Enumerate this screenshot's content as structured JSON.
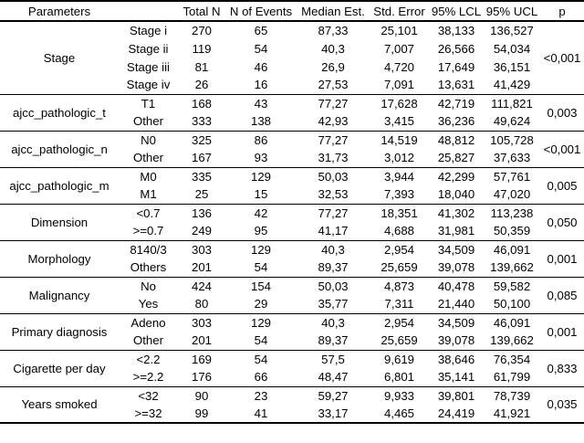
{
  "chart_data": {
    "type": "table",
    "columns": [
      "Parameters",
      "",
      "Total N",
      "N of Events",
      "Median Est.",
      "Std. Error",
      "95% LCL",
      "95% UCL",
      "p"
    ],
    "groups": [
      {
        "parameter": "Stage",
        "p": "<0,001",
        "rows": [
          {
            "level": "Stage i",
            "total_n": "270",
            "n_of_events": "65",
            "median_est": "87,33",
            "std_error": "25,101",
            "lcl_95": "38,133",
            "ucl_95": "136,527"
          },
          {
            "level": "Stage ii",
            "total_n": "119",
            "n_of_events": "54",
            "median_est": "40,3",
            "std_error": "7,007",
            "lcl_95": "26,566",
            "ucl_95": "54,034"
          },
          {
            "level": "Stage iii",
            "total_n": "81",
            "n_of_events": "46",
            "median_est": "26,9",
            "std_error": "4,720",
            "lcl_95": "17,649",
            "ucl_95": "36,151"
          },
          {
            "level": "Stage iv",
            "total_n": "26",
            "n_of_events": "16",
            "median_est": "27,53",
            "std_error": "7,091",
            "lcl_95": "13,631",
            "ucl_95": "41,429"
          }
        ]
      },
      {
        "parameter": "ajcc_pathologic_t",
        "p": "0,003",
        "rows": [
          {
            "level": "T1",
            "total_n": "168",
            "n_of_events": "43",
            "median_est": "77,27",
            "std_error": "17,628",
            "lcl_95": "42,719",
            "ucl_95": "111,821"
          },
          {
            "level": "Other",
            "total_n": "333",
            "n_of_events": "138",
            "median_est": "42,93",
            "std_error": "3,415",
            "lcl_95": "36,236",
            "ucl_95": "49,624"
          }
        ]
      },
      {
        "parameter": "ajcc_pathologic_n",
        "p": "<0,001",
        "rows": [
          {
            "level": "N0",
            "total_n": "325",
            "n_of_events": "86",
            "median_est": "77,27",
            "std_error": "14,519",
            "lcl_95": "48,812",
            "ucl_95": "105,728"
          },
          {
            "level": "Other",
            "total_n": "167",
            "n_of_events": "93",
            "median_est": "31,73",
            "std_error": "3,012",
            "lcl_95": "25,827",
            "ucl_95": "37,633"
          }
        ]
      },
      {
        "parameter": "ajcc_pathologic_m",
        "p": "0,005",
        "rows": [
          {
            "level": "M0",
            "total_n": "335",
            "n_of_events": "129",
            "median_est": "50,03",
            "std_error": "3,944",
            "lcl_95": "42,299",
            "ucl_95": "57,761"
          },
          {
            "level": "M1",
            "total_n": "25",
            "n_of_events": "15",
            "median_est": "32,53",
            "std_error": "7,393",
            "lcl_95": "18,040",
            "ucl_95": "47,020"
          }
        ]
      },
      {
        "parameter": "Dimension",
        "p": "0,050",
        "rows": [
          {
            "level": "<0.7",
            "total_n": "136",
            "n_of_events": "42",
            "median_est": "77,27",
            "std_error": "18,351",
            "lcl_95": "41,302",
            "ucl_95": "113,238"
          },
          {
            "level": ">=0.7",
            "total_n": "249",
            "n_of_events": "95",
            "median_est": "41,17",
            "std_error": "4,688",
            "lcl_95": "31,981",
            "ucl_95": "50,359"
          }
        ]
      },
      {
        "parameter": "Morphology",
        "p": "0,001",
        "rows": [
          {
            "level": "8140/3",
            "total_n": "303",
            "n_of_events": "129",
            "median_est": "40,3",
            "std_error": "2,954",
            "lcl_95": "34,509",
            "ucl_95": "46,091"
          },
          {
            "level": "Others",
            "total_n": "201",
            "n_of_events": "54",
            "median_est": "89,37",
            "std_error": "25,659",
            "lcl_95": "39,078",
            "ucl_95": "139,662"
          }
        ]
      },
      {
        "parameter": "Malignancy",
        "p": "0,085",
        "rows": [
          {
            "level": "No",
            "total_n": "424",
            "n_of_events": "154",
            "median_est": "50,03",
            "std_error": "4,873",
            "lcl_95": "40,478",
            "ucl_95": "59,582"
          },
          {
            "level": "Yes",
            "total_n": "80",
            "n_of_events": "29",
            "median_est": "35,77",
            "std_error": "7,311",
            "lcl_95": "21,440",
            "ucl_95": "50,100"
          }
        ]
      },
      {
        "parameter": "Primary diagnosis",
        "p": "0,001",
        "rows": [
          {
            "level": "Adeno",
            "total_n": "303",
            "n_of_events": "129",
            "median_est": "40,3",
            "std_error": "2,954",
            "lcl_95": "34,509",
            "ucl_95": "46,091"
          },
          {
            "level": "Other",
            "total_n": "201",
            "n_of_events": "54",
            "median_est": "89,37",
            "std_error": "25,659",
            "lcl_95": "39,078",
            "ucl_95": "139,662"
          }
        ]
      },
      {
        "parameter": "Cigarette per day",
        "p": "0,833",
        "rows": [
          {
            "level": "<2.2",
            "total_n": "169",
            "n_of_events": "54",
            "median_est": "57,5",
            "std_error": "9,619",
            "lcl_95": "38,646",
            "ucl_95": "76,354"
          },
          {
            "level": ">=2.2",
            "total_n": "176",
            "n_of_events": "66",
            "median_est": "48,47",
            "std_error": "6,801",
            "lcl_95": "35,141",
            "ucl_95": "61,799"
          }
        ]
      },
      {
        "parameter": "Years smoked",
        "p": "0,035",
        "rows": [
          {
            "level": "<32",
            "total_n": "90",
            "n_of_events": "23",
            "median_est": "59,27",
            "std_error": "9,933",
            "lcl_95": "39,801",
            "ucl_95": "78,739"
          },
          {
            "level": ">=32",
            "total_n": "99",
            "n_of_events": "41",
            "median_est": "33,17",
            "std_error": "4,465",
            "lcl_95": "24,419",
            "ucl_95": "41,921"
          }
        ]
      }
    ],
    "colors": {
      "text": "#000000",
      "rules": "#000000",
      "background": "#ffffff"
    }
  }
}
